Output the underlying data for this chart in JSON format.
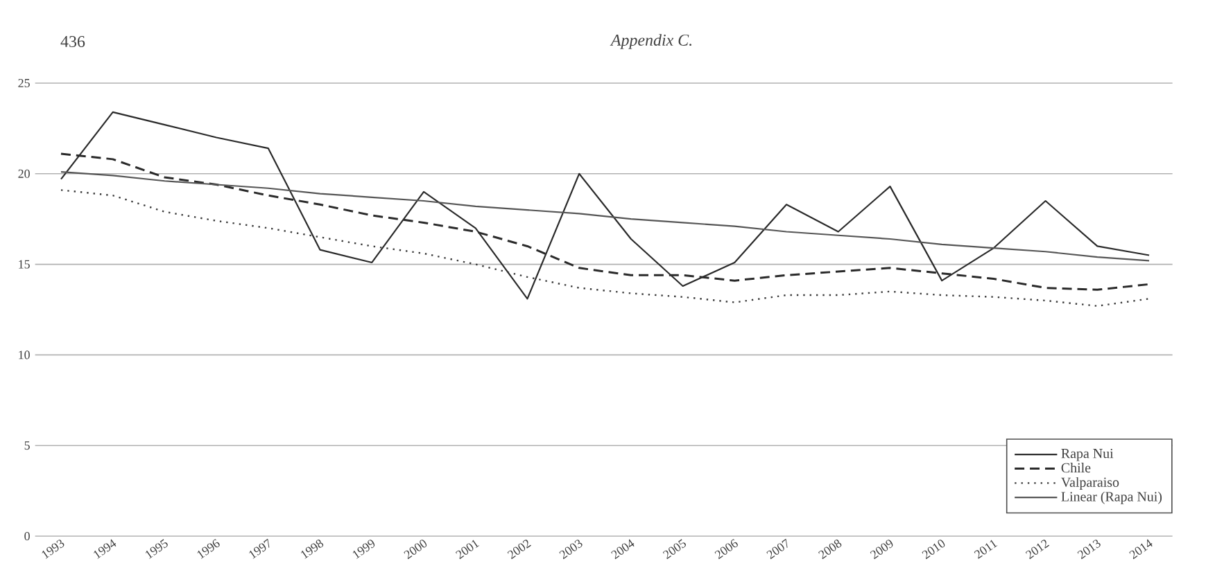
{
  "chart_data": {
    "type": "line",
    "title": "Appendix C.",
    "annotations": [
      "436"
    ],
    "categories": [
      "1993",
      "1994",
      "1995",
      "1996",
      "1997",
      "1998",
      "1999",
      "2000",
      "2001",
      "2002",
      "2003",
      "2004",
      "2005",
      "2006",
      "2007",
      "2008",
      "2009",
      "2010",
      "2011",
      "2012",
      "2013",
      "2014"
    ],
    "series": [
      {
        "name": "Rapa Nui",
        "color": "#2a2a2a",
        "line_style": "solid",
        "values": [
          19.7,
          23.4,
          22.7,
          22.0,
          21.4,
          15.8,
          15.1,
          19.0,
          17.0,
          13.1,
          20.0,
          16.4,
          13.8,
          15.1,
          18.3,
          16.8,
          19.3,
          14.1,
          15.9,
          18.5,
          16.0,
          15.5
        ]
      },
      {
        "name": "Chile",
        "color": "#2a2a2a",
        "line_style": "dashed",
        "values": [
          21.1,
          20.8,
          19.8,
          19.4,
          18.8,
          18.3,
          17.7,
          17.3,
          16.8,
          16.0,
          14.8,
          14.4,
          14.4,
          14.1,
          14.4,
          14.6,
          14.8,
          14.5,
          14.2,
          13.7,
          13.6,
          13.9
        ]
      },
      {
        "name": "Valparaiso",
        "color": "#3a3a3a",
        "line_style": "dotted",
        "values": [
          19.1,
          18.8,
          17.9,
          17.4,
          17.0,
          16.5,
          16.0,
          15.6,
          15.0,
          14.3,
          13.7,
          13.4,
          13.2,
          12.9,
          13.3,
          13.3,
          13.5,
          13.3,
          13.2,
          13.0,
          12.7,
          13.1
        ]
      },
      {
        "name": "Linear (Rapa Nui)",
        "color": "#555555",
        "line_style": "solid",
        "values": [
          20.1,
          19.9,
          19.6,
          19.4,
          19.2,
          18.9,
          18.7,
          18.5,
          18.2,
          18.0,
          17.8,
          17.5,
          17.3,
          17.1,
          16.8,
          16.6,
          16.4,
          16.1,
          15.9,
          15.7,
          15.4,
          15.2
        ]
      }
    ],
    "ylim": [
      0,
      25
    ],
    "yticks": [
      0,
      5,
      10,
      15,
      20,
      25
    ],
    "grid": "y",
    "legend": "bottom right"
  }
}
